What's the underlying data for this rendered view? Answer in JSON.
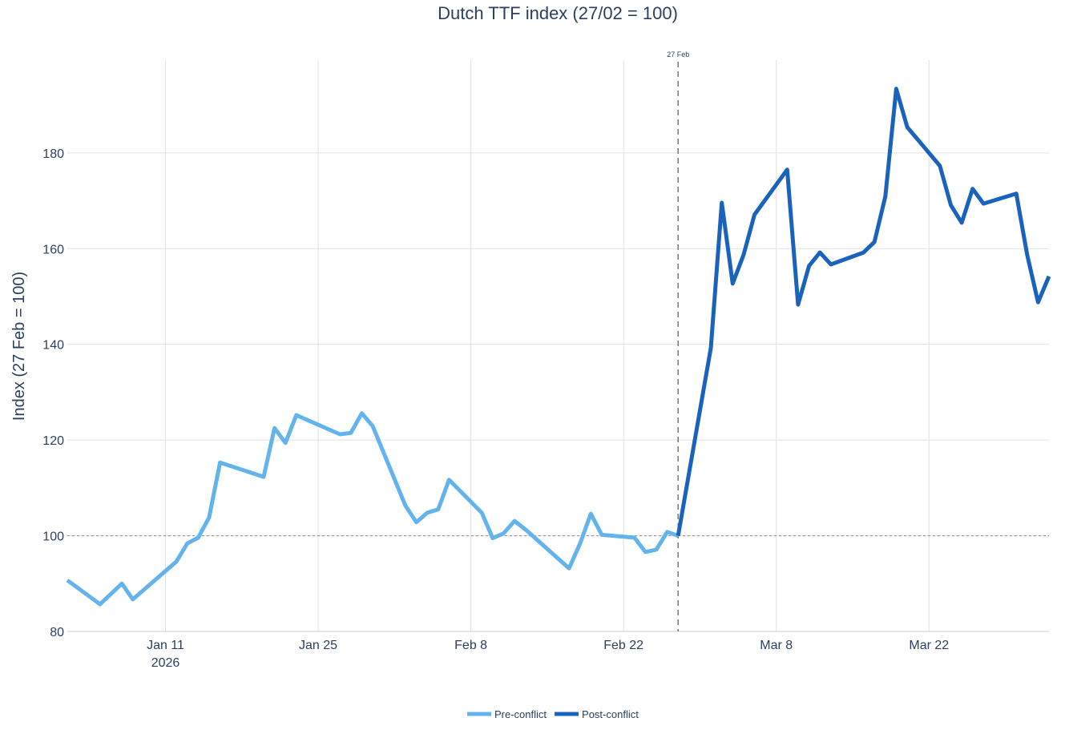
{
  "chart_data": {
    "type": "line",
    "title": "Dutch TTF index (27/02 = 100)",
    "y_label": "Index (27 Feb = 100)",
    "xlim": [
      "2026-01-02",
      "2026-04-02"
    ],
    "xticks": [
      {
        "value": "2026-01-11",
        "label": "Jan 11"
      },
      {
        "value": "2026-01-25",
        "label": "Jan 25"
      },
      {
        "value": "2026-02-08",
        "label": "Feb 8"
      },
      {
        "value": "2026-02-22",
        "label": "Feb 22"
      },
      {
        "value": "2026-03-08",
        "label": "Mar 8"
      },
      {
        "value": "2026-03-22",
        "label": "Mar 22"
      }
    ],
    "x_year_label": "2026",
    "ylim": [
      80,
      199.4
    ],
    "yticks": [
      80,
      100,
      120,
      140,
      160,
      180
    ],
    "grid": true,
    "legend": "bottom",
    "reference_line": 100,
    "event_line": {
      "x": "2026-02-27",
      "label": "27 Feb"
    },
    "series": [
      {
        "name": "Pre-conflict",
        "color": "#63b3ed",
        "x": [
          "2026-01-02",
          "2026-01-05",
          "2026-01-07",
          "2026-01-08",
          "2026-01-12",
          "2026-01-13",
          "2026-01-14",
          "2026-01-15",
          "2026-01-16",
          "2026-01-20",
          "2026-01-21",
          "2026-01-22",
          "2026-01-23",
          "2026-01-27",
          "2026-01-28",
          "2026-01-29",
          "2026-01-30",
          "2026-02-02",
          "2026-02-03",
          "2026-02-04",
          "2026-02-05",
          "2026-02-06",
          "2026-02-09",
          "2026-02-10",
          "2026-02-11",
          "2026-02-12",
          "2026-02-13",
          "2026-02-17",
          "2026-02-18",
          "2026-02-19",
          "2026-02-20",
          "2026-02-23",
          "2026-02-24",
          "2026-02-25",
          "2026-02-26",
          "2026-02-27"
        ],
        "values": [
          90.7,
          85.7,
          90.0,
          86.7,
          94.6,
          98.4,
          99.6,
          103.8,
          115.3,
          112.3,
          122.5,
          119.4,
          125.2,
          121.2,
          121.5,
          125.6,
          122.9,
          106.3,
          102.8,
          104.8,
          105.5,
          111.7,
          104.8,
          99.5,
          100.5,
          103.1,
          101.3,
          93.2,
          98.3,
          104.6,
          100.2,
          99.6,
          96.6,
          97.1,
          100.8,
          100
        ]
      },
      {
        "name": "Post-conflict",
        "color": "#1a63bd",
        "x": [
          "2026-02-27",
          "2026-03-02",
          "2026-03-03",
          "2026-03-04",
          "2026-03-05",
          "2026-03-06",
          "2026-03-09",
          "2026-03-10",
          "2026-03-11",
          "2026-03-12",
          "2026-03-13",
          "2026-03-16",
          "2026-03-17",
          "2026-03-18",
          "2026-03-19",
          "2026-03-20",
          "2026-03-23",
          "2026-03-24",
          "2026-03-25",
          "2026-03-26",
          "2026-03-27",
          "2026-03-30",
          "2026-03-31",
          "2026-04-01",
          "2026-04-02"
        ],
        "values": [
          100,
          139.3,
          169.6,
          152.7,
          158.7,
          167.1,
          176.5,
          148.3,
          156.4,
          159.2,
          156.7,
          159.2,
          161.4,
          170.9,
          193.4,
          185.4,
          177.3,
          169.1,
          165.4,
          172.5,
          169.4,
          171.5,
          158.7,
          148.8,
          154.2
        ]
      }
    ]
  }
}
